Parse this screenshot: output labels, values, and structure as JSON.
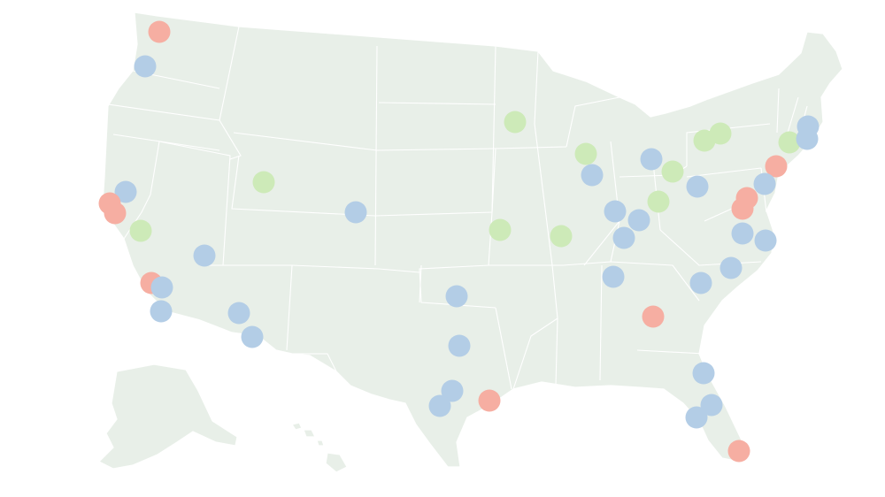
{
  "map": {
    "palette": {
      "land": "#e8efe8",
      "state_border": "#ffffff",
      "blue": "#b3cde6",
      "red": "#f6aea2",
      "green": "#cdeab8"
    },
    "markers": [
      {
        "name": "seattle",
        "color": "red"
      },
      {
        "name": "portland",
        "color": "blue"
      },
      {
        "name": "sacramento",
        "color": "blue"
      },
      {
        "name": "san-francisco",
        "color": "red"
      },
      {
        "name": "san-jose",
        "color": "red"
      },
      {
        "name": "fresno",
        "color": "green"
      },
      {
        "name": "las-vegas",
        "color": "blue"
      },
      {
        "name": "los-angeles",
        "color": "red"
      },
      {
        "name": "riverside",
        "color": "blue"
      },
      {
        "name": "san-diego",
        "color": "blue"
      },
      {
        "name": "phoenix",
        "color": "blue"
      },
      {
        "name": "tucson",
        "color": "blue"
      },
      {
        "name": "salt-lake-city",
        "color": "green"
      },
      {
        "name": "denver",
        "color": "blue"
      },
      {
        "name": "minneapolis",
        "color": "green"
      },
      {
        "name": "omaha",
        "color": "green"
      },
      {
        "name": "kansas-city",
        "color": "green"
      },
      {
        "name": "milwaukee",
        "color": "green"
      },
      {
        "name": "chicago",
        "color": "blue"
      },
      {
        "name": "detroit",
        "color": "blue"
      },
      {
        "name": "cleveland",
        "color": "green"
      },
      {
        "name": "indianapolis",
        "color": "blue"
      },
      {
        "name": "columbus",
        "color": "green"
      },
      {
        "name": "cincinnati",
        "color": "blue"
      },
      {
        "name": "louisville",
        "color": "blue"
      },
      {
        "name": "pittsburgh",
        "color": "blue"
      },
      {
        "name": "buffalo",
        "color": "green"
      },
      {
        "name": "rochester",
        "color": "green"
      },
      {
        "name": "hartford",
        "color": "green"
      },
      {
        "name": "boston",
        "color": "blue"
      },
      {
        "name": "providence",
        "color": "blue"
      },
      {
        "name": "new-york",
        "color": "red"
      },
      {
        "name": "philadelphia",
        "color": "blue"
      },
      {
        "name": "baltimore",
        "color": "red"
      },
      {
        "name": "washington",
        "color": "red"
      },
      {
        "name": "richmond",
        "color": "blue"
      },
      {
        "name": "virginia-beach",
        "color": "blue"
      },
      {
        "name": "raleigh",
        "color": "blue"
      },
      {
        "name": "charlotte",
        "color": "blue"
      },
      {
        "name": "nashville",
        "color": "blue"
      },
      {
        "name": "atlanta",
        "color": "red"
      },
      {
        "name": "oklahoma-city",
        "color": "blue"
      },
      {
        "name": "dallas",
        "color": "blue"
      },
      {
        "name": "austin",
        "color": "blue"
      },
      {
        "name": "san-antonio",
        "color": "blue"
      },
      {
        "name": "houston",
        "color": "red"
      },
      {
        "name": "jacksonville",
        "color": "blue"
      },
      {
        "name": "orlando",
        "color": "blue"
      },
      {
        "name": "tampa",
        "color": "blue"
      },
      {
        "name": "miami",
        "color": "red"
      }
    ]
  }
}
